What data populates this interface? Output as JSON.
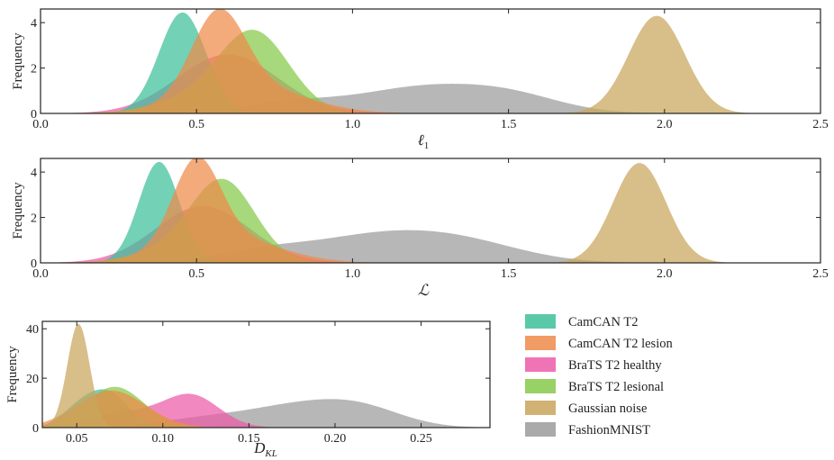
{
  "series_styles": [
    {
      "name": "CamCAN T2",
      "color": "#3dbf9a"
    },
    {
      "name": "CamCAN T2 lesion",
      "color": "#ef8a4a"
    },
    {
      "name": "BraTS T2 healthy",
      "color": "#ec5aa8"
    },
    {
      "name": "BraTS T2 lesional",
      "color": "#86c94a"
    },
    {
      "name": "Gaussian noise",
      "color": "#c9a55c"
    },
    {
      "name": "FashionMNIST",
      "color": "#9b9b9b"
    }
  ],
  "legend": {
    "placement": "bottom-right",
    "entries": [
      "CamCAN T2",
      "CamCAN T2 lesion",
      "BraTS T2 healthy",
      "BraTS T2 lesional",
      "Gaussian noise",
      "FashionMNIST"
    ]
  },
  "chart_data": [
    {
      "type": "area",
      "xlabel": "ℓ",
      "xlabel_sub": "1",
      "ylabel": "Frequency",
      "xlim": [
        0.0,
        2.5
      ],
      "ylim": [
        0,
        4.6
      ],
      "xticks": [
        "0.0",
        "0.5",
        "1.0",
        "1.5",
        "2.0",
        "2.5"
      ],
      "yticks": [
        "0",
        "2",
        "4"
      ],
      "grid": false,
      "series": [
        {
          "name": "CamCAN T2",
          "peaks": [
            {
              "center": 0.455,
              "sigma": 0.075,
              "height": 4.45
            }
          ]
        },
        {
          "name": "CamCAN T2 lesion",
          "peaks": [
            {
              "center": 0.57,
              "sigma": 0.085,
              "height": 3.55
            },
            {
              "center": 0.66,
              "sigma": 0.18,
              "height": 1.2
            }
          ]
        },
        {
          "name": "BraTS T2 healthy",
          "peaks": [
            {
              "center": 0.6,
              "sigma": 0.16,
              "height": 2.6
            }
          ]
        },
        {
          "name": "BraTS T2 lesional",
          "peaks": [
            {
              "center": 0.69,
              "sigma": 0.11,
              "height": 3.15
            },
            {
              "center": 0.55,
              "sigma": 0.15,
              "height": 0.8
            }
          ]
        },
        {
          "name": "Gaussian noise",
          "peaks": [
            {
              "center": 1.975,
              "sigma": 0.09,
              "height": 4.3
            }
          ]
        },
        {
          "name": "FashionMNIST",
          "peaks": [
            {
              "center": 1.2,
              "sigma": 0.2,
              "height": 1.05
            },
            {
              "center": 1.5,
              "sigma": 0.17,
              "height": 0.75
            },
            {
              "center": 0.8,
              "sigma": 0.15,
              "height": 0.45
            }
          ]
        }
      ]
    },
    {
      "type": "area",
      "xlabel": "ℒ",
      "xlabel_sub": "",
      "ylabel": "Frequency",
      "xlim": [
        0.0,
        2.5
      ],
      "ylim": [
        0,
        4.6
      ],
      "xticks": [
        "0.0",
        "0.5",
        "1.0",
        "1.5",
        "2.0",
        "2.5"
      ],
      "yticks": [
        "0",
        "2",
        "4"
      ],
      "grid": false,
      "series": [
        {
          "name": "CamCAN T2",
          "peaks": [
            {
              "center": 0.38,
              "sigma": 0.065,
              "height": 4.45
            }
          ]
        },
        {
          "name": "CamCAN T2 lesion",
          "peaks": [
            {
              "center": 0.5,
              "sigma": 0.075,
              "height": 3.6
            },
            {
              "center": 0.58,
              "sigma": 0.17,
              "height": 1.2
            }
          ]
        },
        {
          "name": "BraTS T2 healthy",
          "peaks": [
            {
              "center": 0.52,
              "sigma": 0.15,
              "height": 2.5
            }
          ]
        },
        {
          "name": "BraTS T2 lesional",
          "peaks": [
            {
              "center": 0.59,
              "sigma": 0.1,
              "height": 3.1
            },
            {
              "center": 0.48,
              "sigma": 0.14,
              "height": 0.8
            }
          ]
        },
        {
          "name": "Gaussian noise",
          "peaks": [
            {
              "center": 1.92,
              "sigma": 0.085,
              "height": 4.4
            }
          ]
        },
        {
          "name": "FashionMNIST",
          "peaks": [
            {
              "center": 1.05,
              "sigma": 0.22,
              "height": 1.05
            },
            {
              "center": 1.35,
              "sigma": 0.2,
              "height": 0.8
            },
            {
              "center": 0.7,
              "sigma": 0.14,
              "height": 0.4
            }
          ]
        }
      ]
    },
    {
      "type": "area",
      "xlabel": "D",
      "xlabel_sub": "KL",
      "ylabel": "Frequency",
      "xlim": [
        0.03,
        0.29
      ],
      "ylim": [
        0,
        43
      ],
      "xticks": [
        "0.05",
        "0.10",
        "0.15",
        "0.20",
        "0.25"
      ],
      "xtick_values": [
        0.05,
        0.1,
        0.15,
        0.2,
        0.25
      ],
      "yticks": [
        "0",
        "20",
        "40"
      ],
      "grid": false,
      "series": [
        {
          "name": "CamCAN T2",
          "peaks": [
            {
              "center": 0.068,
              "sigma": 0.012,
              "height": 14
            },
            {
              "center": 0.05,
              "sigma": 0.01,
              "height": 6
            }
          ]
        },
        {
          "name": "CamCAN T2 lesion",
          "peaks": [
            {
              "center": 0.07,
              "sigma": 0.02,
              "height": 15
            }
          ]
        },
        {
          "name": "BraTS T2 healthy",
          "peaks": [
            {
              "center": 0.117,
              "sigma": 0.016,
              "height": 12.5
            },
            {
              "center": 0.08,
              "sigma": 0.02,
              "height": 6
            }
          ]
        },
        {
          "name": "BraTS T2 lesional",
          "peaks": [
            {
              "center": 0.072,
              "sigma": 0.017,
              "height": 16.5
            }
          ]
        },
        {
          "name": "Gaussian noise",
          "peaks": [
            {
              "center": 0.051,
              "sigma": 0.0065,
              "height": 42
            }
          ]
        },
        {
          "name": "FashionMNIST",
          "peaks": [
            {
              "center": 0.175,
              "sigma": 0.03,
              "height": 8
            },
            {
              "center": 0.215,
              "sigma": 0.025,
              "height": 7
            },
            {
              "center": 0.12,
              "sigma": 0.025,
              "height": 3
            }
          ]
        }
      ]
    }
  ]
}
